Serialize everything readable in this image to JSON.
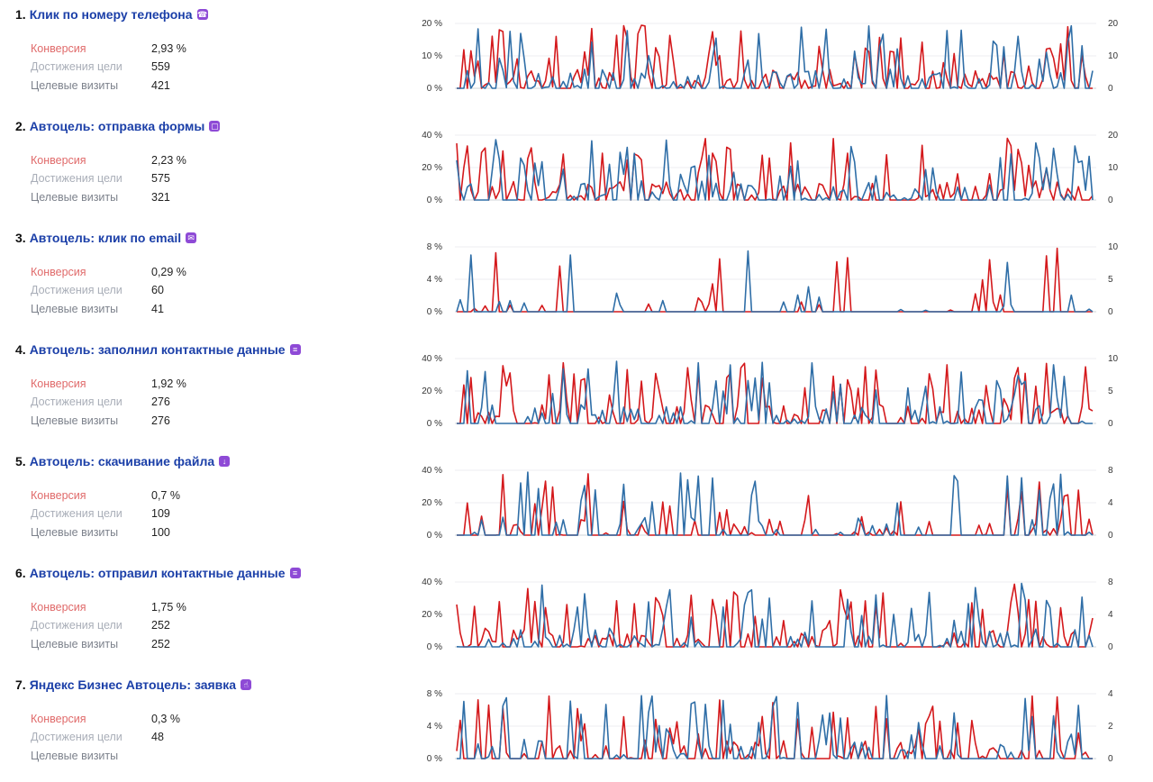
{
  "labels": {
    "conversion": "Конверсия",
    "reaches": "Достижения цели",
    "visits": "Целевые визиты"
  },
  "colors": {
    "conversion_line": "#d4191c",
    "visits_line": "#2f6ea7",
    "title": "#1b3fa8",
    "icon_bg": "#8e4ad6"
  },
  "goals": [
    {
      "num": "1.",
      "title": "Клик по номеру телефона",
      "icon": "phone-icon",
      "conversion": "2,93 %",
      "reaches": "559",
      "visits": "421",
      "chart": {
        "left_ticks": [
          "20 %",
          "10 %",
          "0 %"
        ],
        "right_ticks": [
          "20",
          "10",
          "0"
        ]
      }
    },
    {
      "num": "2.",
      "title": "Автоцель: отправка формы",
      "icon": "form-icon",
      "conversion": "2,23 %",
      "reaches": "575",
      "visits": "321",
      "chart": {
        "left_ticks": [
          "40 %",
          "20 %",
          "0 %"
        ],
        "right_ticks": [
          "20",
          "10",
          "0"
        ]
      }
    },
    {
      "num": "3.",
      "title": "Автоцель: клик по email",
      "icon": "email-icon",
      "conversion": "0,29 %",
      "reaches": "60",
      "visits": "41",
      "chart": {
        "left_ticks": [
          "8 %",
          "4 %",
          "0 %"
        ],
        "right_ticks": [
          "10",
          "5",
          "0"
        ]
      }
    },
    {
      "num": "4.",
      "title": "Автоцель: заполнил контактные данные",
      "icon": "contact-card-icon",
      "conversion": "1,92 %",
      "reaches": "276",
      "visits": "276",
      "chart": {
        "left_ticks": [
          "40 %",
          "20 %",
          "0 %"
        ],
        "right_ticks": [
          "10",
          "5",
          "0"
        ]
      }
    },
    {
      "num": "5.",
      "title": "Автоцель: скачивание файла",
      "icon": "download-icon",
      "conversion": "0,7 %",
      "reaches": "109",
      "visits": "100",
      "chart": {
        "left_ticks": [
          "40 %",
          "20 %",
          "0 %"
        ],
        "right_ticks": [
          "8",
          "4",
          "0"
        ]
      }
    },
    {
      "num": "6.",
      "title": "Автоцель: отправил контактные данные",
      "icon": "contact-card-icon",
      "conversion": "1,75 %",
      "reaches": "252",
      "visits": "252",
      "chart": {
        "left_ticks": [
          "40 %",
          "20 %",
          "0 %"
        ],
        "right_ticks": [
          "8",
          "4",
          "0"
        ]
      }
    },
    {
      "num": "7.",
      "title": "Яндекс Бизнес Автоцель: заявка",
      "icon": "pointer-icon",
      "conversion": "0,3 %",
      "reaches": "48",
      "visits": "",
      "chart": {
        "left_ticks": [
          "8 %",
          "4 %",
          "0 %"
        ],
        "right_ticks": [
          "4",
          "2",
          "0"
        ]
      }
    }
  ]
}
